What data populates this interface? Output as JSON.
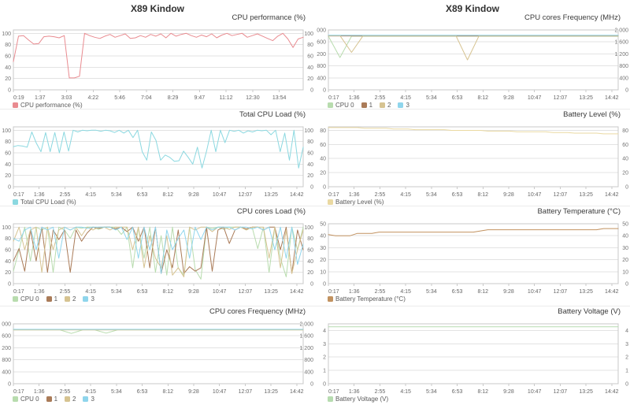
{
  "columns": [
    {
      "title": "X89 Kindow"
    },
    {
      "title": "X89 Kindow"
    }
  ],
  "chart_data": [
    {
      "type": "line",
      "title": "CPU performance (%)",
      "ylim": [
        0,
        106
      ],
      "yticks": [
        [
          100,
          "100"
        ],
        [
          80,
          "80"
        ],
        [
          60,
          "60"
        ],
        [
          40,
          "40"
        ],
        [
          20,
          "20"
        ],
        [
          0,
          "0"
        ]
      ],
      "xticks": [
        "0:19",
        "1:37",
        "3:03",
        "4:22",
        "5:46",
        "7:04",
        "8:29",
        "9:47",
        "11:12",
        "12:30",
        "13:54"
      ],
      "xdiv": 10.9,
      "series": [
        {
          "name": "CPU performance (%)",
          "color": "#e98b90",
          "values": [
            50,
            95,
            96,
            88,
            81,
            82,
            94,
            95,
            94,
            92,
            96,
            21,
            21,
            24,
            100,
            96,
            93,
            91,
            95,
            98,
            93,
            96,
            99,
            91,
            92,
            96,
            93,
            98,
            95,
            99,
            92,
            100,
            95,
            98,
            100,
            96,
            93,
            97,
            94,
            99,
            92,
            97,
            100,
            96,
            98,
            100,
            93,
            96,
            99,
            95,
            91,
            87,
            95,
            100,
            90,
            75,
            90,
            93
          ]
        }
      ],
      "legend": [
        {
          "label": "CPU performance (%)",
          "color": "#e98b90"
        }
      ]
    },
    {
      "type": "line",
      "title": "Total CPU Load (%)",
      "ylim": [
        0,
        106
      ],
      "yticks": [
        [
          100,
          "100"
        ],
        [
          80,
          "80"
        ],
        [
          60,
          "60"
        ],
        [
          40,
          "40"
        ],
        [
          20,
          "20"
        ],
        [
          0,
          "0"
        ]
      ],
      "xticks": [
        "0:17",
        "1:36",
        "2:55",
        "4:15",
        "5:34",
        "6:53",
        "8:12",
        "9:28",
        "10:47",
        "12:07",
        "13:25",
        "14:42"
      ],
      "xdiv": 11.25,
      "series": [
        {
          "name": "Total CPU Load (%)",
          "color": "#8bd8e0",
          "values": [
            71,
            73,
            72,
            70,
            97,
            77,
            62,
            96,
            62,
            96,
            60,
            97,
            63,
            100,
            97,
            100,
            99,
            100,
            100,
            98,
            100,
            99,
            96,
            100,
            95,
            100,
            87,
            100,
            62,
            47,
            97,
            82,
            47,
            56,
            52,
            45,
            46,
            63,
            52,
            40,
            70,
            33,
            63,
            100,
            62,
            100,
            78,
            100,
            98,
            100,
            95,
            99,
            97,
            100,
            99,
            100,
            92,
            100,
            62,
            95,
            47,
            100,
            33,
            70
          ]
        }
      ],
      "legend": [
        {
          "label": "Total CPU Load (%)",
          "color": "#8bd8e0"
        }
      ]
    },
    {
      "type": "line",
      "title": "CPU cores Load (%)",
      "ylim": [
        0,
        106
      ],
      "yticks": [
        [
          100,
          "100"
        ],
        [
          80,
          "80"
        ],
        [
          60,
          "60"
        ],
        [
          40,
          "40"
        ],
        [
          20,
          "20"
        ],
        [
          0,
          "0"
        ]
      ],
      "xticks": [
        "0:17",
        "1:36",
        "2:55",
        "4:15",
        "5:34",
        "6:53",
        "8:12",
        "9:28",
        "10:47",
        "12:07",
        "13:25",
        "14:42"
      ],
      "xdiv": 11.25,
      "series": [
        {
          "name": "CPU 0",
          "color": "#b8dcae",
          "values": [
            22,
            60,
            100,
            40,
            100,
            95,
            100,
            20,
            100,
            95,
            80,
            100,
            98,
            100,
            100,
            96,
            100,
            100,
            100,
            87,
            100,
            28,
            100,
            45,
            100,
            20,
            85,
            15,
            100,
            28,
            15,
            100,
            25,
            8,
            100,
            98,
            100,
            96,
            100,
            100,
            100,
            95,
            100,
            62,
            100,
            20,
            100,
            45,
            12,
            100,
            60,
            100
          ]
        },
        {
          "name": "1",
          "color": "#aa7b58",
          "values": [
            40,
            62,
            22,
            95,
            40,
            100,
            20,
            95,
            78,
            95,
            20,
            95,
            75,
            90,
            100,
            98,
            100,
            100,
            97,
            100,
            92,
            100,
            75,
            100,
            28,
            100,
            18,
            60,
            28,
            95,
            18,
            30,
            22,
            28,
            100,
            22,
            95,
            100,
            71,
            95,
            100,
            97,
            100,
            100,
            95,
            100,
            100,
            60,
            100,
            18,
            95,
            60
          ]
        },
        {
          "name": "2",
          "color": "#d6c391",
          "values": [
            75,
            100,
            60,
            95,
            100,
            20,
            100,
            60,
            95,
            100,
            95,
            100,
            85,
            100,
            95,
            100,
            100,
            95,
            100,
            100,
            100,
            60,
            100,
            28,
            85,
            45,
            28,
            85,
            15,
            28,
            12,
            100,
            95,
            100,
            100,
            92,
            100,
            100,
            96,
            100,
            100,
            95,
            100,
            100,
            100,
            45,
            100,
            28,
            95,
            18,
            60,
            95
          ]
        },
        {
          "name": "3",
          "color": "#8fd5ec",
          "values": [
            80,
            75,
            95,
            100,
            60,
            100,
            95,
            100,
            45,
            100,
            95,
            100,
            100,
            98,
            100,
            100,
            100,
            100,
            95,
            100,
            78,
            100,
            45,
            100,
            60,
            100,
            18,
            95,
            60,
            80,
            95,
            45,
            100,
            78,
            100,
            95,
            100,
            100,
            100,
            95,
            100,
            100,
            97,
            100,
            95,
            100,
            60,
            100,
            45,
            100,
            34,
            70
          ]
        }
      ],
      "legend": [
        {
          "label": "CPU 0",
          "color": "#b8dcae"
        },
        {
          "label": "1",
          "color": "#aa7b58"
        },
        {
          "label": "2",
          "color": "#d6c391"
        },
        {
          "label": "3",
          "color": "#8fd5ec"
        }
      ]
    },
    {
      "type": "line",
      "title": "CPU cores Frequency (MHz)",
      "ylim": [
        0,
        2000
      ],
      "yticks": [
        [
          2000,
          "2 000"
        ],
        [
          1600,
          "1 600"
        ],
        [
          1200,
          "1 200"
        ],
        [
          800,
          "800"
        ],
        [
          400,
          "400"
        ],
        [
          0,
          "0"
        ]
      ],
      "xticks": [
        "0:17",
        "1:36",
        "2:55",
        "4:15",
        "5:34",
        "6:53",
        "8:12",
        "9:28",
        "10:47",
        "12:07",
        "13:25",
        "14:42"
      ],
      "xdiv": 11.25,
      "series": [
        {
          "name": "CPU 0",
          "color": "#b8dcae",
          "values": [
            1800,
            1800,
            1800,
            1800,
            1800,
            1680,
            1800,
            1800,
            1690,
            1800,
            1800,
            1800,
            1800,
            1800,
            1800,
            1800,
            1800,
            1800,
            1800,
            1800,
            1800,
            1800,
            1800,
            1800,
            1800,
            1800
          ]
        },
        {
          "name": "1",
          "color": "#aa7b58",
          "values": [
            1805,
            1805
          ]
        },
        {
          "name": "2",
          "color": "#d6c391",
          "values": [
            1795,
            1795
          ]
        },
        {
          "name": "3",
          "color": "#8fd5ec",
          "values": [
            1815,
            1815
          ]
        }
      ],
      "legend": [
        {
          "label": "CPU 0",
          "color": "#b8dcae"
        },
        {
          "label": "1",
          "color": "#aa7b58"
        },
        {
          "label": "2",
          "color": "#d6c391"
        },
        {
          "label": "3",
          "color": "#8fd5ec"
        }
      ]
    },
    {
      "type": "line",
      "title": "CPU cores Frequency (MHz)",
      "ylim": [
        0,
        2000
      ],
      "yticks": [
        [
          2000,
          "2 000"
        ],
        [
          1600,
          "1 600"
        ],
        [
          1200,
          "1 200"
        ],
        [
          800,
          "800"
        ],
        [
          400,
          "400"
        ],
        [
          0,
          "0"
        ]
      ],
      "xticks": [
        "0:17",
        "1:36",
        "2:55",
        "4:15",
        "5:34",
        "6:53",
        "8:12",
        "9:28",
        "10:47",
        "12:07",
        "13:25",
        "14:42"
      ],
      "xdiv": 11.25,
      "series": [
        {
          "name": "CPU 0",
          "color": "#b8dcae",
          "values": [
            1790,
            1080,
            1790,
            1790,
            1790,
            1790,
            1790,
            1790,
            1790,
            1790,
            1790,
            1790,
            1790,
            1790,
            1790,
            1790,
            1790,
            1790,
            1790,
            1790,
            1790,
            1790,
            1790,
            1790,
            1790,
            1790
          ]
        },
        {
          "name": "1",
          "color": "#aa7b58",
          "values": [
            1800,
            1800
          ]
        },
        {
          "name": "2",
          "color": "#d6c391",
          "values": [
            1810,
            1810,
            1250,
            1810,
            1810,
            1810,
            1810,
            1810,
            1810,
            1810,
            1810,
            1810,
            1000,
            1810,
            1810,
            1810,
            1810,
            1810,
            1810,
            1810,
            1810,
            1810,
            1810,
            1810,
            1810,
            1810
          ]
        },
        {
          "name": "3",
          "color": "#8fd5ec",
          "values": [
            1820,
            1820
          ]
        }
      ],
      "legend": [
        {
          "label": "CPU 0",
          "color": "#b8dcae"
        },
        {
          "label": "1",
          "color": "#aa7b58"
        },
        {
          "label": "2",
          "color": "#d6c391"
        },
        {
          "label": "3",
          "color": "#8fd5ec"
        }
      ]
    },
    {
      "type": "line",
      "title": "Battery Level (%)",
      "ylim": [
        0,
        85
      ],
      "yticks": [
        [
          80,
          "80"
        ],
        [
          60,
          "60"
        ],
        [
          40,
          "40"
        ],
        [
          20,
          "20"
        ],
        [
          0,
          "0"
        ]
      ],
      "xticks": [
        "0:17",
        "1:36",
        "2:55",
        "4:15",
        "5:34",
        "6:53",
        "8:12",
        "9:28",
        "10:47",
        "12:07",
        "13:25",
        "14:42"
      ],
      "xdiv": 11.25,
      "series": [
        {
          "name": "Battery Level (%)",
          "color": "#ead9a2",
          "values": [
            84,
            84,
            84,
            84,
            84,
            83,
            83,
            83,
            83,
            82,
            82,
            82,
            81,
            81,
            81,
            81,
            81,
            80,
            80,
            80,
            80,
            80,
            79,
            79,
            79,
            79,
            78,
            78,
            78,
            78,
            78,
            77,
            77,
            77,
            76,
            76,
            76,
            76,
            75,
            75,
            75
          ]
        }
      ],
      "legend": [
        {
          "label": "Battery Level (%)",
          "color": "#ead9a2"
        }
      ]
    },
    {
      "type": "line",
      "title": "Battery Temperature (°C)",
      "ylim": [
        0,
        50
      ],
      "yticks": [
        [
          50,
          "50"
        ],
        [
          40,
          "40"
        ],
        [
          30,
          "30"
        ],
        [
          20,
          "20"
        ],
        [
          10,
          "10"
        ],
        [
          0,
          "0"
        ]
      ],
      "xticks": [
        "0:17",
        "1:36",
        "2:55",
        "4:15",
        "5:34",
        "6:53",
        "8:12",
        "9:28",
        "10:47",
        "12:07",
        "13:25",
        "14:42"
      ],
      "xdiv": 11.25,
      "series": [
        {
          "name": "Battery Temperature (°C)",
          "color": "#c29260",
          "values": [
            41,
            40,
            40,
            40,
            42,
            42,
            42,
            43,
            43,
            43,
            43,
            43,
            43,
            43,
            43,
            43,
            43,
            43,
            43,
            43,
            43,
            44,
            45,
            45,
            45,
            45,
            45,
            45,
            45,
            45,
            45,
            45,
            45,
            45,
            45,
            45,
            45,
            45,
            46,
            46,
            46
          ]
        }
      ],
      "legend": [
        {
          "label": "Battery Temperature (°C)",
          "color": "#c29260"
        }
      ]
    },
    {
      "type": "line",
      "title": "Battery Voltage (V)",
      "ylim": [
        0,
        4.5
      ],
      "yticks": [
        [
          4,
          "4"
        ],
        [
          3,
          "3"
        ],
        [
          2,
          "2"
        ],
        [
          1,
          "1"
        ],
        [
          0,
          "0"
        ]
      ],
      "xticks": [
        "0:17",
        "1:36",
        "2:55",
        "4:15",
        "5:34",
        "6:53",
        "8:12",
        "9:28",
        "10:47",
        "12:07",
        "13:25",
        "14:42"
      ],
      "xdiv": 11.25,
      "series": [
        {
          "name": "Battery Voltage (V)",
          "color": "#b7dcb0",
          "values": [
            4.28,
            4.28
          ]
        }
      ],
      "legend": [
        {
          "label": "Battery Voltage (V)",
          "color": "#b7dcb0"
        }
      ]
    }
  ]
}
